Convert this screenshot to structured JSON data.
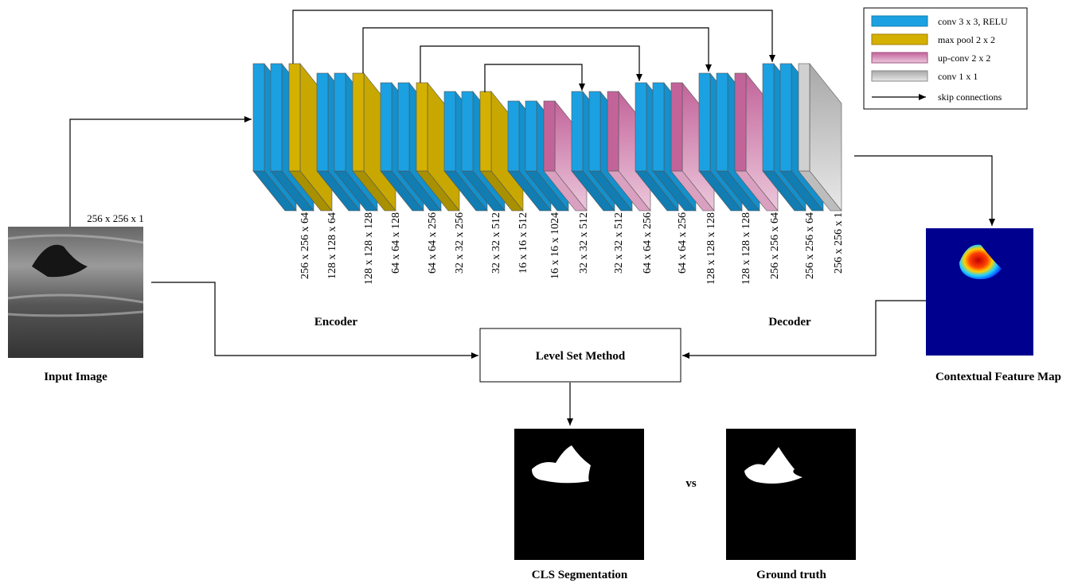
{
  "legend": {
    "items": [
      "conv 3 x 3, RELU",
      "max pool 2 x 2",
      "up-conv 2 x 2",
      "conv 1 x 1",
      "skip connections"
    ]
  },
  "input": {
    "size_label": "256 x 256 x 1",
    "caption": "Input Image"
  },
  "network": {
    "dims": [
      "256 x 256 x 64",
      "128 x 128 x 64",
      "128 x 128 x 128",
      "64 x 64 x 128",
      "64 x 64 x 256",
      "32 x 32 x 256",
      "32 x 32 x 512",
      "16 x 16 x 512",
      "16 x 16 x 1024",
      "32 x 32 x 512",
      "32 x 32 x 512",
      "64 x 64 x 256",
      "64 x 64 x 256",
      "128 x 128 x 128",
      "128 x 128 x 128",
      "256 x 256 x 64",
      "256 x 256 x 64",
      "256 x 256 x 1"
    ],
    "encoder_label": "Encoder",
    "decoder_label": "Decoder"
  },
  "level_set": "Level Set Method",
  "feature_map": {
    "caption": "Contextual Feature Map"
  },
  "outputs": {
    "segmentation_caption": "CLS Segmentation",
    "vs": "vs",
    "ground_truth_caption": "Ground truth"
  }
}
